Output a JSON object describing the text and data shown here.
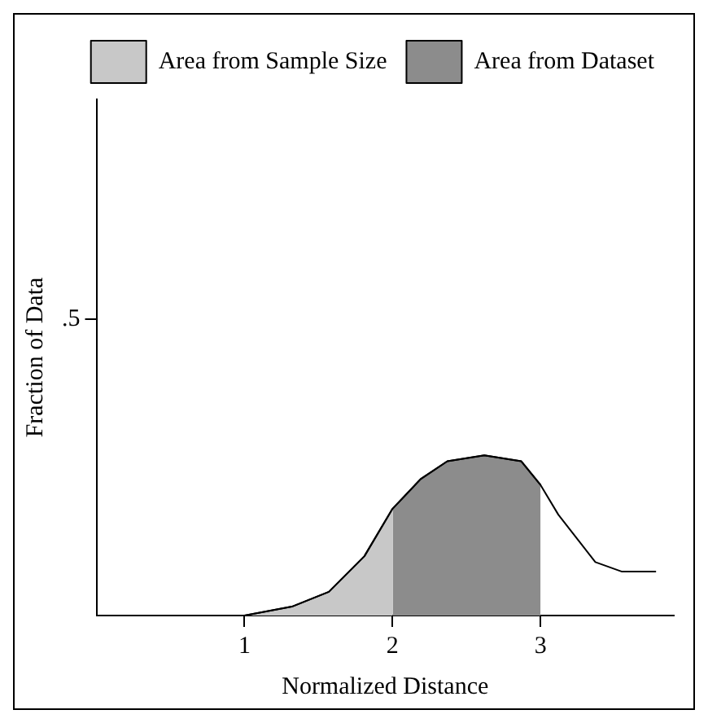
{
  "chart_data": {
    "type": "line",
    "xlabel": "Normalized Distance",
    "ylabel": "Fraction of Data",
    "xlim": [
      0,
      3.9
    ],
    "ylim": [
      0,
      0.87
    ],
    "xticks": [
      1,
      2,
      3
    ],
    "yticks": [
      {
        "value": 0.5,
        "label": ".5"
      }
    ],
    "grid": false,
    "legend": "top right",
    "marker": "none",
    "line_style": "solid",
    "series": [
      {
        "color": "#000000",
        "x": [
          1,
          1.32,
          1.57,
          1.81,
          2.0,
          2.19,
          2.37,
          2.62,
          2.87,
          3.0,
          3.12,
          3.37,
          3.55,
          3.78
        ],
        "values": [
          0,
          0.015,
          0.04,
          0.1,
          0.18,
          0.23,
          0.26,
          0.27,
          0.26,
          0.22,
          0.17,
          0.09,
          0.074,
          0.074
        ]
      },
      {
        "name": "Area from Sample Size",
        "type": "area",
        "color": "#c8c8c8",
        "x": [
          1,
          1.32,
          1.57,
          1.81,
          2.0
        ],
        "values": [
          0,
          0.015,
          0.04,
          0.1,
          0.18
        ]
      },
      {
        "name": "Area from Dataset",
        "type": "area",
        "color": "#8c8c8c",
        "x": [
          2.0,
          2.19,
          2.37,
          2.62,
          2.87,
          3.0
        ],
        "values": [
          0.18,
          0.23,
          0.26,
          0.27,
          0.26,
          0.22
        ]
      }
    ]
  }
}
